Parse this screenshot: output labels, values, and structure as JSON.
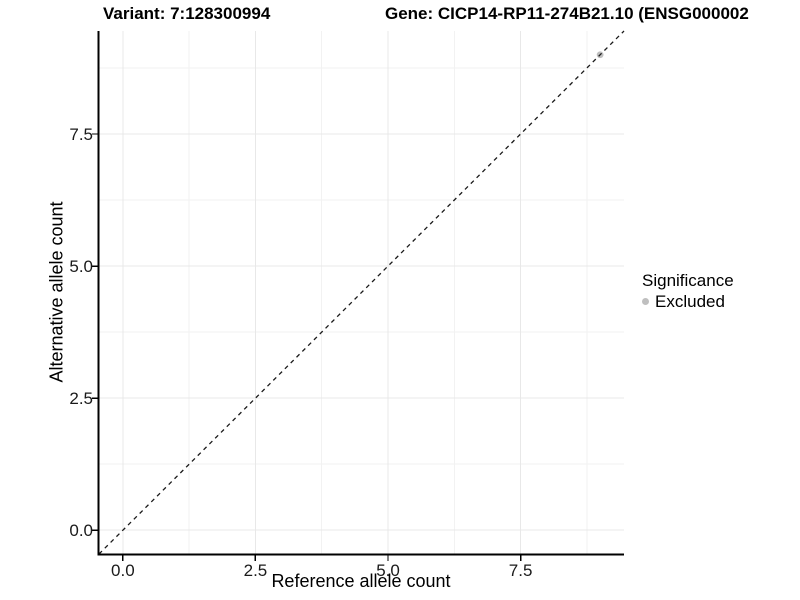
{
  "header": {
    "variant_title": "Variant: 7:128300994",
    "gene_title": "Gene: CICP14-RP11-274B21.10 (ENSG000002"
  },
  "chart_data": {
    "type": "scatter",
    "title_left": "Variant: 7:128300994",
    "title_right": "Gene: CICP14-RP11-274B21.10 (ENSG000002",
    "xlabel": "Reference allele count",
    "ylabel": "Alternative allele count",
    "xlim": [
      -0.45,
      9.45
    ],
    "ylim": [
      -0.45,
      9.45
    ],
    "x_ticks": [
      0.0,
      2.5,
      5.0,
      7.5
    ],
    "y_ticks": [
      0.0,
      2.5,
      5.0,
      7.5
    ],
    "x_tick_labels": [
      "0.0",
      "2.5",
      "5.0",
      "7.5"
    ],
    "y_tick_labels": [
      "0.0",
      "2.5",
      "5.0",
      "7.5"
    ],
    "x_minor_ticks": [
      1.25,
      3.75,
      6.25,
      8.75
    ],
    "y_minor_ticks": [
      1.25,
      3.75,
      6.25,
      8.75
    ],
    "grid": true,
    "grid_major_color": "#e8e8e8",
    "grid_minor_color": "#f2f2f2",
    "axis_color": "#000000",
    "tick_label_color": "#1a1a1a",
    "background_color": "#ffffff",
    "reference_line": {
      "kind": "identity",
      "slope": 1,
      "intercept": 0,
      "style": "dashed",
      "color": "#1a1a1a"
    },
    "series": [
      {
        "name": "Excluded",
        "color": "#bfbfbf",
        "points": [
          {
            "x": 9,
            "y": 9
          }
        ]
      }
    ],
    "legend": {
      "position": "right",
      "title": "Significance",
      "items": [
        {
          "label": "Excluded",
          "color": "#bfbfbf"
        }
      ]
    }
  }
}
